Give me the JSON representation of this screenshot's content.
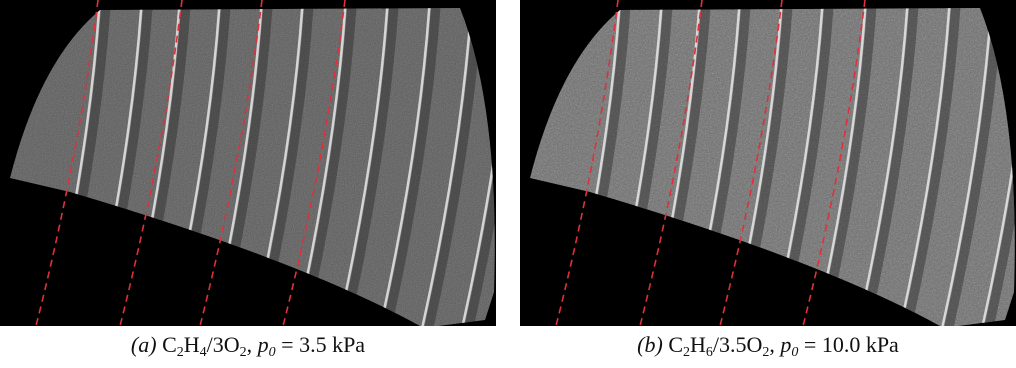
{
  "panels": [
    {
      "id": "a",
      "label": "(a)",
      "mixture": {
        "fuel": "C",
        "fuel_sub1": "2",
        "fuel_h": "H",
        "fuel_sub2": "4",
        "oxidizer": "3O",
        "ox_sub": "2"
      },
      "pressure_symbol": "p",
      "pressure_sub": "0",
      "pressure_value": "= 3.5 kPa",
      "dashed_line_color": "#e0303a",
      "brightness": "#5a5a5a"
    },
    {
      "id": "b",
      "label": "(b)",
      "mixture": {
        "fuel": "C",
        "fuel_sub1": "2",
        "fuel_h": "H",
        "fuel_sub2": "6",
        "oxidizer": "3.5O",
        "ox_sub": "2"
      },
      "pressure_symbol": "p",
      "pressure_sub": "0",
      "pressure_value": "= 10.0 kPa",
      "dashed_line_color": "#e0303a",
      "brightness": "#6a6a6a"
    }
  ]
}
